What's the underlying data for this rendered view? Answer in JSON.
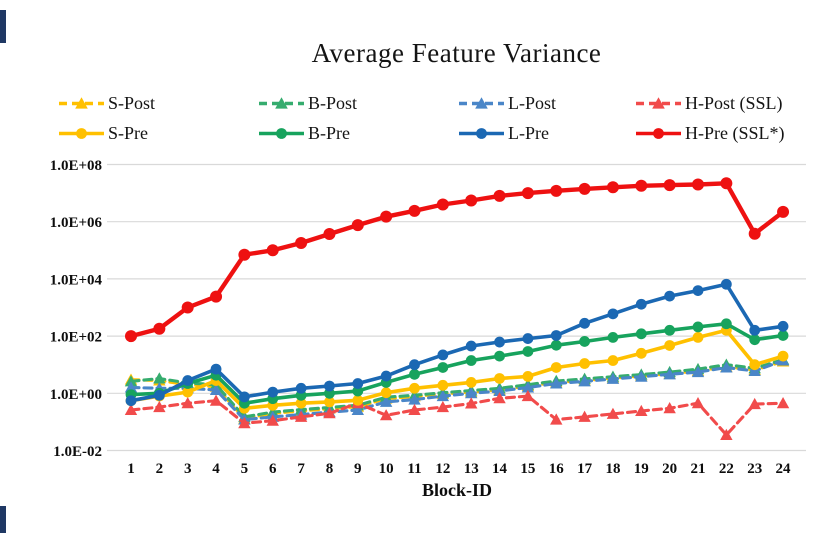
{
  "figure": {
    "title": "Average Feature Variance",
    "background_color": "#ffffff",
    "gridline_color": "#d9d9d9",
    "edge_artifact_color": "#1f3864"
  },
  "chart_data": {
    "type": "line",
    "title": "Average Feature Variance",
    "xlabel": "Block-ID",
    "ylabel": "",
    "y_scale": "log10",
    "ylim": [
      0.01,
      100000000
    ],
    "grid": "horizontal",
    "legend_position": "top",
    "y_ticks": [
      {
        "label": "1.0E+08",
        "value": 100000000
      },
      {
        "label": "1.0E+06",
        "value": 1000000
      },
      {
        "label": "1.0E+04",
        "value": 10000
      },
      {
        "label": "1.0E+02",
        "value": 100
      },
      {
        "label": "1.0E+00",
        "value": 1
      },
      {
        "label": "1.0E-02",
        "value": 0.01
      }
    ],
    "x": [
      1,
      2,
      3,
      4,
      5,
      6,
      7,
      8,
      9,
      10,
      11,
      12,
      13,
      14,
      15,
      16,
      17,
      18,
      19,
      20,
      21,
      22,
      23,
      24
    ],
    "series": [
      {
        "name": "S-Post",
        "color": "#FFC000",
        "style": "dashed",
        "marker": "triangle",
        "values": [
          3.0,
          2.8,
          2.0,
          1.7,
          0.13,
          0.2,
          0.24,
          0.29,
          0.34,
          0.65,
          0.78,
          0.95,
          1.1,
          1.3,
          1.8,
          2.4,
          2.8,
          3.4,
          4.0,
          4.8,
          6.0,
          8.5,
          6.5,
          13
        ]
      },
      {
        "name": "B-Post",
        "color": "#35AC6E",
        "style": "dashed",
        "marker": "triangle",
        "values": [
          2.6,
          3.3,
          2.3,
          2.0,
          0.15,
          0.22,
          0.27,
          0.32,
          0.38,
          0.73,
          0.85,
          1.05,
          1.25,
          1.5,
          2.0,
          2.7,
          3.2,
          3.8,
          4.5,
          5.5,
          7.0,
          10,
          7.5,
          15
        ]
      },
      {
        "name": "L-Post",
        "color": "#4A86C8",
        "style": "dashed",
        "marker": "triangle",
        "values": [
          1.6,
          1.5,
          1.5,
          1.3,
          0.12,
          0.15,
          0.18,
          0.22,
          0.26,
          0.5,
          0.6,
          0.8,
          1.0,
          1.2,
          1.6,
          2.2,
          2.6,
          3.2,
          3.8,
          4.6,
          5.5,
          8.0,
          6.0,
          14
        ]
      },
      {
        "name": "H-Post (SSL)",
        "color": "#F14B4B",
        "style": "dashed",
        "marker": "triangle",
        "values": [
          0.26,
          0.33,
          0.45,
          0.55,
          0.09,
          0.11,
          0.15,
          0.2,
          0.45,
          0.17,
          0.26,
          0.33,
          0.44,
          0.67,
          0.8,
          0.12,
          0.15,
          0.19,
          0.24,
          0.3,
          0.45,
          0.035,
          0.42,
          0.45
        ]
      },
      {
        "name": "S-Pre",
        "color": "#FFC000",
        "style": "solid",
        "marker": "circle",
        "values": [
          0.55,
          0.8,
          1.1,
          2.8,
          0.3,
          0.38,
          0.45,
          0.5,
          0.57,
          1.05,
          1.5,
          1.9,
          2.4,
          3.3,
          3.9,
          8,
          11,
          14,
          25,
          47,
          90,
          160,
          10,
          20
        ]
      },
      {
        "name": "B-Pre",
        "color": "#17A35D",
        "style": "solid",
        "marker": "circle",
        "values": [
          0.9,
          1.0,
          2.2,
          4.3,
          0.45,
          0.65,
          0.85,
          1.0,
          1.2,
          2.4,
          4.6,
          8,
          14,
          20,
          29,
          48,
          65,
          90,
          120,
          160,
          210,
          270,
          75,
          105
        ]
      },
      {
        "name": "L-Pre",
        "color": "#1B68B3",
        "style": "solid",
        "marker": "circle",
        "values": [
          0.55,
          0.85,
          2.8,
          7.0,
          0.75,
          1.1,
          1.5,
          1.8,
          2.2,
          4.0,
          10,
          22,
          45,
          62,
          82,
          105,
          280,
          600,
          1300,
          2500,
          3900,
          6500,
          160,
          220
        ]
      },
      {
        "name": "H-Pre (SSL*)",
        "color": "#EE1111",
        "style": "solid",
        "marker": "circle",
        "values": [
          100,
          180,
          1000,
          2400,
          70000,
          100000,
          180000,
          370000,
          760000,
          1500000,
          2400000,
          4000000,
          5500000,
          8000000,
          10000000,
          12000000,
          14000000,
          16000000,
          18000000,
          19000000,
          20000000,
          22000000,
          380000,
          2200000
        ]
      }
    ]
  }
}
